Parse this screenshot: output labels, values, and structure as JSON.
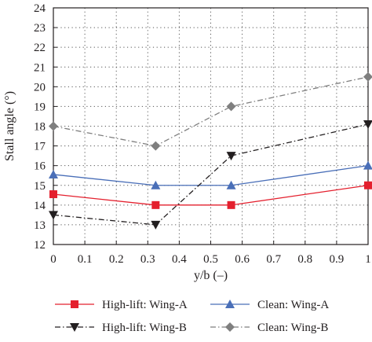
{
  "chart_data": {
    "type": "line",
    "title": "",
    "xlabel": "y/b (–)",
    "ylabel": "Stall angle (°)",
    "xlim": [
      0,
      1
    ],
    "ylim": [
      12,
      24
    ],
    "x_ticks": [
      0,
      0.1,
      0.2,
      0.3,
      0.4,
      0.5,
      0.6,
      0.7,
      0.8,
      0.9,
      1
    ],
    "x_tick_labels": [
      "0",
      "0.1",
      "0.2",
      "0.3",
      "0.4",
      "0.5",
      "0.6",
      "0.7",
      "0.8",
      "0.9",
      "1"
    ],
    "y_ticks": [
      12,
      13,
      14,
      15,
      16,
      17,
      18,
      19,
      20,
      21,
      22,
      23,
      24
    ],
    "grid": true,
    "legend_position": "bottom",
    "x": [
      0,
      0.325,
      0.565,
      1
    ],
    "series": [
      {
        "name": "High-lift: Wing-A",
        "values": [
          14.55,
          14.0,
          14.0,
          15.0
        ],
        "color": "#e4202e",
        "marker": "square",
        "line_style": "solid"
      },
      {
        "name": "Clean: Wing-A",
        "values": [
          15.55,
          15.0,
          15.0,
          16.0
        ],
        "color": "#4a6fb8",
        "marker": "triangle-up",
        "line_style": "solid"
      },
      {
        "name": "High-lift: Wing-B",
        "values": [
          13.5,
          13.0,
          16.5,
          18.1
        ],
        "color": "#231f20",
        "marker": "triangle-down",
        "line_style": "dash-dot"
      },
      {
        "name": "Clean: Wing-B",
        "values": [
          18.0,
          17.0,
          19.0,
          20.5
        ],
        "color": "#7f7f7f",
        "marker": "diamond",
        "line_style": "dash-dot"
      }
    ]
  }
}
